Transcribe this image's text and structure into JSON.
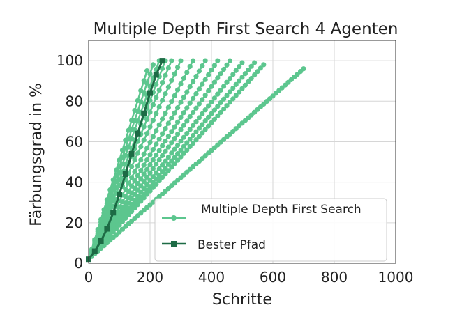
{
  "chart_data": {
    "type": "line",
    "title": "Multiple Depth First Search 4 Agenten",
    "xlabel": "Schritte",
    "ylabel": "Färbungsgrad in %",
    "xlim": [
      0,
      1000
    ],
    "ylim": [
      0,
      110
    ],
    "xticks": [
      0,
      200,
      400,
      600,
      800,
      1000
    ],
    "yticks": [
      0,
      20,
      40,
      60,
      80,
      100
    ],
    "grid": true,
    "legend_position": "lower-right",
    "colors": {
      "mdfs": "#5cc68e",
      "best": "#1d6b45"
    },
    "series": [
      {
        "name": "Multiple Depth First Search",
        "style": "mdfs",
        "runs": [
          {
            "x": [
              0,
              700
            ],
            "y": [
              2,
              96
            ]
          },
          {
            "x": [
              0,
              570
            ],
            "y": [
              2,
              98
            ]
          },
          {
            "x": [
              0,
              540
            ],
            "y": [
              2,
              99
            ]
          },
          {
            "x": [
              0,
              500
            ],
            "y": [
              2,
              99
            ]
          },
          {
            "x": [
              0,
              460
            ],
            "y": [
              2,
              100
            ]
          },
          {
            "x": [
              0,
              420
            ],
            "y": [
              2,
              100
            ]
          },
          {
            "x": [
              0,
              380
            ],
            "y": [
              2,
              100
            ]
          },
          {
            "x": [
              0,
              340
            ],
            "y": [
              2,
              100
            ]
          },
          {
            "x": [
              0,
              300
            ],
            "y": [
              2,
              100
            ]
          },
          {
            "x": [
              0,
              270
            ],
            "y": [
              2,
              100
            ]
          },
          {
            "x": [
              0,
              250
            ],
            "y": [
              2,
              100
            ]
          },
          {
            "x": [
              0,
              230
            ],
            "y": [
              2,
              100
            ]
          },
          {
            "x": [
              0,
              210
            ],
            "y": [
              2,
              98
            ]
          },
          {
            "x": [
              0,
              190
            ],
            "y": [
              2,
              95
            ]
          }
        ]
      },
      {
        "name": "Bester Pfad",
        "style": "best",
        "runs": [
          {
            "x": [
              0,
              20,
              40,
              60,
              80,
              100,
              120,
              140,
              160,
              180,
              200,
              220,
              240
            ],
            "y": [
              2,
              6,
              11,
              17,
              25,
              34,
              44,
              54,
              64,
              74,
              84,
              93,
              100
            ]
          }
        ]
      }
    ]
  }
}
